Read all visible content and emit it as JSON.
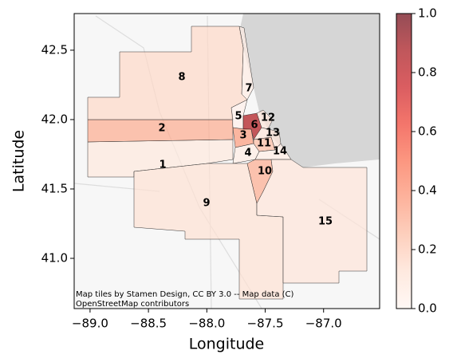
{
  "chart_data": {
    "type": "choropleth",
    "xlabel": "Longitude",
    "ylabel": "Latitude",
    "xlim": [
      -89.136,
      -86.52
    ],
    "ylim": [
      40.638,
      42.764
    ],
    "xticks": [
      {
        "value": -89.0,
        "label": "−89.0"
      },
      {
        "value": -88.5,
        "label": "−88.5"
      },
      {
        "value": -88.0,
        "label": "−88.0"
      },
      {
        "value": -87.5,
        "label": "−87.5"
      },
      {
        "value": -87.0,
        "label": "−87.0"
      }
    ],
    "yticks": [
      {
        "value": 41.0,
        "label": "41.0"
      },
      41.5,
      {
        "value": 42.0,
        "label": "42.0"
      },
      42.5
    ],
    "colormap": "Reds",
    "alpha": 0.7,
    "clim": [
      0,
      1
    ],
    "cticks": [
      {
        "value": 0,
        "label": "0.0"
      },
      0.2,
      0.4,
      0.6,
      0.8,
      {
        "value": 1,
        "label": "1.0"
      }
    ],
    "attribution": [
      "Map tiles by Stamen Design, CC BY 3.0 -- Map data (C)",
      "OpenStreetMap contributors"
    ],
    "regions": [
      {
        "label": "1",
        "value": 0.08
      },
      {
        "label": "2",
        "value": 0.3
      },
      {
        "label": "3",
        "value": 0.35
      },
      {
        "label": "4",
        "value": 0.05
      },
      {
        "label": "5",
        "value": 0.03
      },
      {
        "label": "6",
        "value": 0.85
      },
      {
        "label": "7",
        "value": 0.05
      },
      {
        "label": "8",
        "value": 0.15
      },
      {
        "label": "9",
        "value": 0.12
      },
      {
        "label": "10",
        "value": 0.3
      },
      {
        "label": "11",
        "value": 0.25
      },
      {
        "label": "12",
        "value": 0.1
      },
      {
        "label": "13",
        "value": 0.1
      },
      {
        "label": "14",
        "value": 0.05
      },
      {
        "label": "15",
        "value": 0.1
      }
    ]
  }
}
